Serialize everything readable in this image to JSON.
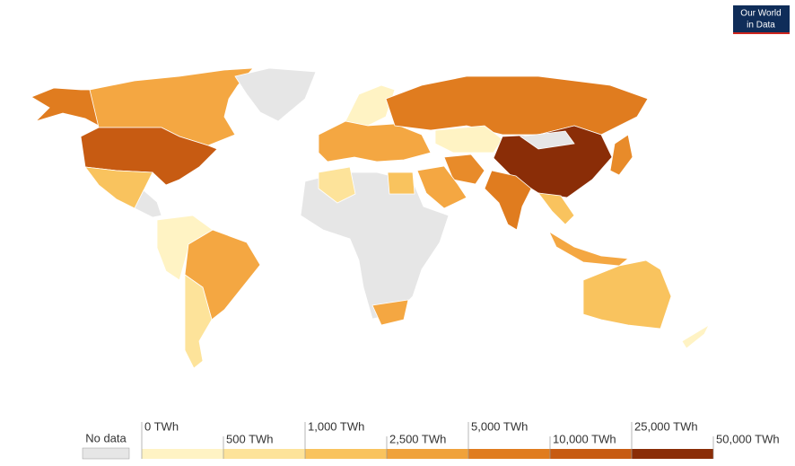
{
  "logo": {
    "line1": "Our World",
    "line2": "in Data"
  },
  "legend": {
    "no_data": "No data",
    "no_data_color": "#e6e6e6",
    "ticks": [
      {
        "value": 0,
        "label": "0 TWh"
      },
      {
        "value": 500,
        "label": "500 TWh"
      },
      {
        "value": 1000,
        "label": "1,000 TWh"
      },
      {
        "value": 2500,
        "label": "2,500 TWh"
      },
      {
        "value": 5000,
        "label": "5,000 TWh"
      },
      {
        "value": 10000,
        "label": "10,000 TWh"
      },
      {
        "value": 25000,
        "label": "25,000 TWh"
      },
      {
        "value": 50000,
        "label": "50,000 TWh"
      }
    ],
    "colors": [
      "#fff3c4",
      "#fde39a",
      "#f9c35e",
      "#f0a23b",
      "#e07c1f",
      "#c75b12",
      "#8a2d07"
    ]
  }
}
